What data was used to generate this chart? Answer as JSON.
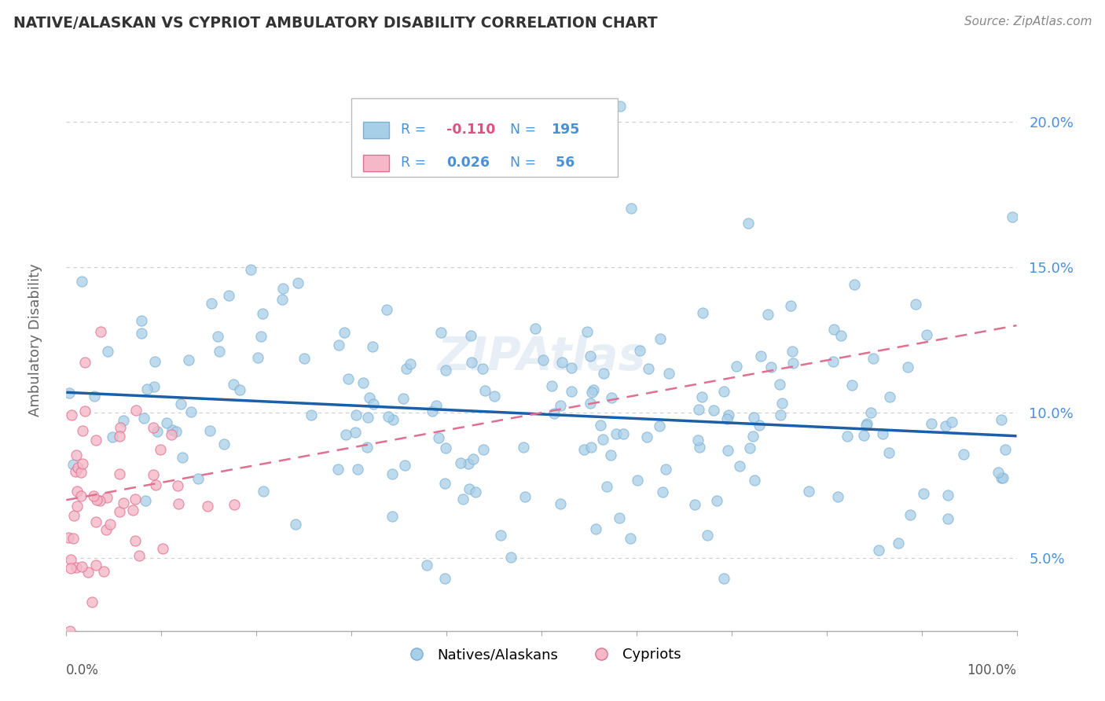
{
  "title": "NATIVE/ALASKAN VS CYPRIOT AMBULATORY DISABILITY CORRELATION CHART",
  "source": "Source: ZipAtlas.com",
  "ylabel": "Ambulatory Disability",
  "yticks": [
    0.05,
    0.1,
    0.15,
    0.2
  ],
  "ytick_labels": [
    "5.0%",
    "10.0%",
    "15.0%",
    "20.0%"
  ],
  "xlim": [
    0.0,
    1.0
  ],
  "ylim": [
    0.025,
    0.225
  ],
  "blue_color": "#a8cfe8",
  "blue_color_edge": "#7bafd4",
  "blue_trend_color": "#1a5fa8",
  "pink_color": "#f4b8c8",
  "pink_color_edge": "#e07090",
  "pink_trend_color": "#e07090",
  "R_blue": -0.11,
  "N_blue": 195,
  "R_pink": 0.026,
  "N_pink": 56,
  "watermark": "ZIPAtlas",
  "background_color": "#ffffff",
  "grid_color": "#cccccc",
  "tick_color": "#4a90d9",
  "legend_text_color": "#4a90d9",
  "legend_R_neg_color": "#e05080",
  "title_color": "#333333",
  "source_color": "#888888",
  "ylabel_color": "#666666"
}
